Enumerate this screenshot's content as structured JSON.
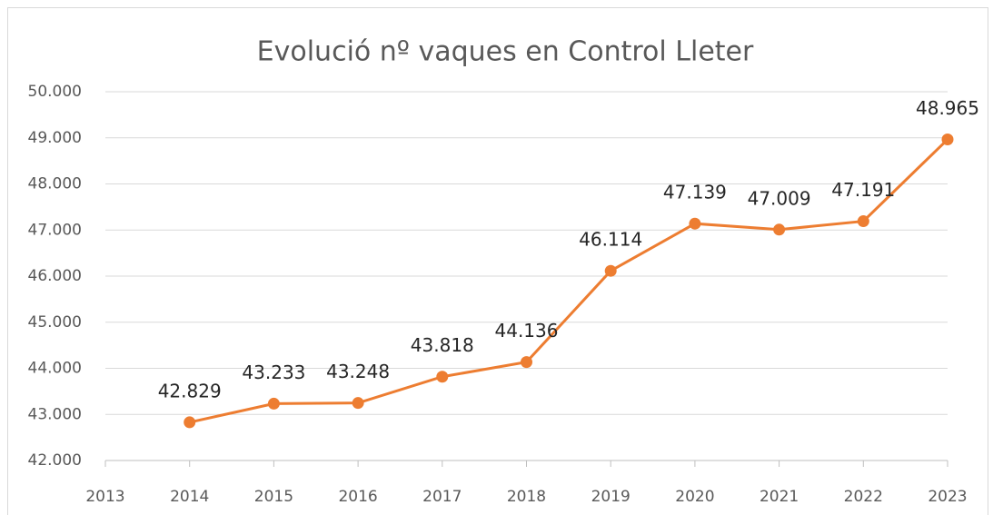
{
  "chart_data": {
    "type": "line",
    "title": "Evolució nº vaques en Control Lleter",
    "x": [
      2014,
      2015,
      2016,
      2017,
      2018,
      2019,
      2020,
      2021,
      2022,
      2023
    ],
    "series": [
      {
        "name": "nº vaques",
        "color": "#ed7d31",
        "values": [
          42829,
          43233,
          43248,
          43818,
          44136,
          46114,
          47139,
          47009,
          47191,
          48965
        ],
        "value_labels": [
          "42.829",
          "43.233",
          "43.248",
          "43.818",
          "44.136",
          "46.114",
          "47.139",
          "47.009",
          "47.191",
          "48.965"
        ]
      }
    ],
    "xlim": [
      2013,
      2023
    ],
    "xticks": [
      2013,
      2014,
      2015,
      2016,
      2017,
      2018,
      2019,
      2020,
      2021,
      2022,
      2023
    ],
    "ylim": [
      42000,
      50000
    ],
    "yticks": [
      {
        "value": 42000,
        "label": "42.000"
      },
      {
        "value": 43000,
        "label": "43.000"
      },
      {
        "value": 44000,
        "label": "44.000"
      },
      {
        "value": 45000,
        "label": "45.000"
      },
      {
        "value": 46000,
        "label": "46.000"
      },
      {
        "value": 47000,
        "label": "47.000"
      },
      {
        "value": 48000,
        "label": "48.000"
      },
      {
        "value": 49000,
        "label": "49.000"
      },
      {
        "value": 50000,
        "label": "50.000"
      }
    ],
    "grid": true
  }
}
